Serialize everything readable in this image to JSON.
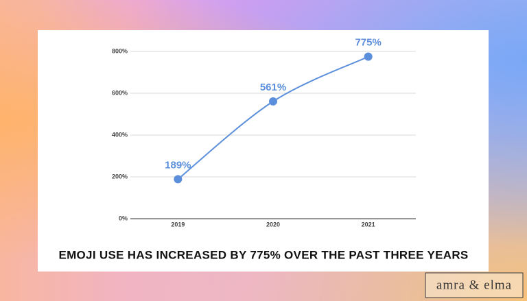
{
  "chart_data": {
    "type": "line",
    "title": "EMOJI USE HAS INCREASED BY 775% OVER THE PAST THREE YEARS",
    "categories": [
      "2019",
      "2020",
      "2021"
    ],
    "values": [
      189,
      561,
      775
    ],
    "value_labels": [
      "189%",
      "561%",
      "775%"
    ],
    "color": "#5b8fdb",
    "ylim": [
      0,
      800
    ],
    "yticks": [
      {
        "value": 0,
        "label": "0%"
      },
      {
        "value": 200,
        "label": "200%"
      },
      {
        "value": 400,
        "label": "400%"
      },
      {
        "value": 600,
        "label": "600%"
      },
      {
        "value": 800,
        "label": "800%"
      }
    ],
    "grid": true,
    "watermark": "amra & elma"
  }
}
